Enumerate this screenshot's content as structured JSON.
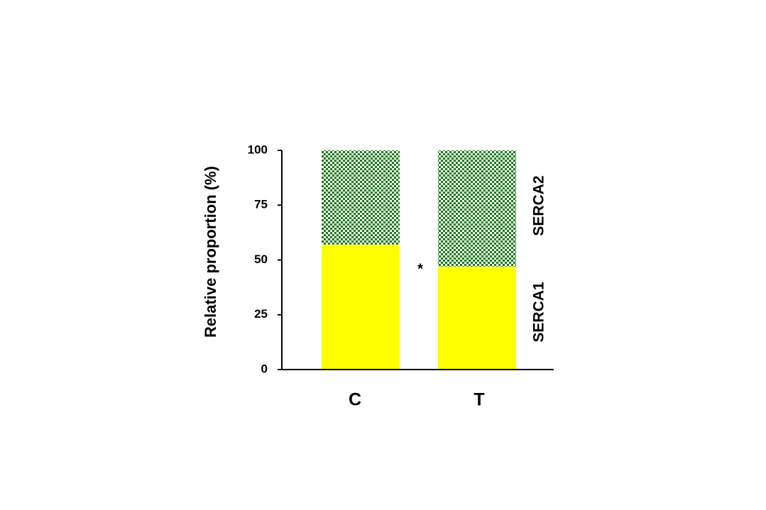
{
  "chart_data": {
    "type": "stacked_bar",
    "y_label": "Relative proportion (%)",
    "categories": [
      "C",
      "T"
    ],
    "series": [
      {
        "name": "SERCA1",
        "color": "#ffff00",
        "values": [
          57,
          47
        ]
      },
      {
        "name": "SERCA2",
        "color": "#1a7a1a",
        "pattern": "checker",
        "values": [
          43,
          53
        ]
      }
    ],
    "ylim": [
      0,
      100
    ],
    "yticks": [
      0,
      25,
      50,
      75,
      100
    ],
    "annotation": "*"
  }
}
